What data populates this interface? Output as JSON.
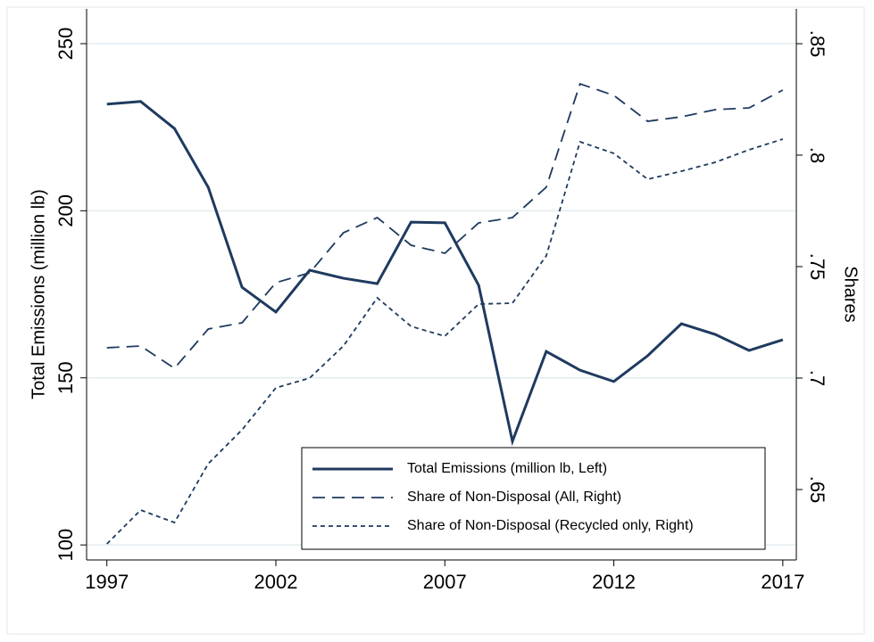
{
  "chart_data": {
    "type": "line",
    "y_title": "Total Emissions (million lb)",
    "y2_title": "Shares",
    "x": [
      1997,
      1998,
      1999,
      2000,
      2001,
      2002,
      2003,
      2004,
      2005,
      2006,
      2007,
      2008,
      2009,
      2010,
      2011,
      2012,
      2013,
      2014,
      2015,
      2016,
      2017
    ],
    "xlim": [
      1996.4,
      2017.4
    ],
    "xticks": [
      1997,
      2002,
      2007,
      2012,
      2017
    ],
    "ylim": [
      95.5,
      260.4
    ],
    "yticks": [
      100,
      150,
      200,
      250
    ],
    "y2lim": [
      0.6184,
      0.8656
    ],
    "y2ticks": [
      {
        "value": 0.65,
        "label": ".65"
      },
      {
        "value": 0.7,
        "label": ".7"
      },
      {
        "value": 0.75,
        "label": ".75"
      },
      {
        "value": 0.8,
        "label": ".8"
      },
      {
        "value": 0.85,
        "label": ".85"
      }
    ],
    "grid": true,
    "legend_position": "bottom-right",
    "series": [
      {
        "name": "Total Emissions (million lb, Left)",
        "color": "#1f3a5f",
        "line_style": "solid",
        "values": [
          231.9,
          232.7,
          224.6,
          207.0,
          177.1,
          169.7,
          182.2,
          179.8,
          178.2,
          196.6,
          196.4,
          177.7,
          131.0,
          157.9,
          152.3,
          148.9,
          156.6,
          166.2,
          163.0,
          158.2,
          161.4
        ]
      },
      {
        "name": "Share of Non-Disposal (All, Right)",
        "color": "#1f3a5f",
        "line_style": "dashed",
        "axis": "y2",
        "values": [
          0.7136,
          0.7144,
          0.7044,
          0.722,
          0.7248,
          0.7428,
          0.7472,
          0.7652,
          0.772,
          0.7596,
          0.756,
          0.7696,
          0.772,
          0.7856,
          0.832,
          0.8268,
          0.8152,
          0.8172,
          0.8204,
          0.8212,
          0.8292
        ]
      },
      {
        "name": "Share of Non-Disposal (Recycled only, Right)",
        "color": "#1f3a5f",
        "line_style": "dotted",
        "axis": "y2",
        "values": [
          0.6256,
          0.6408,
          0.6352,
          0.6616,
          0.6768,
          0.6956,
          0.7,
          0.7144,
          0.736,
          0.7232,
          0.7188,
          0.7332,
          0.7336,
          0.7548,
          0.806,
          0.8008,
          0.7892,
          0.7928,
          0.7968,
          0.8024,
          0.8072
        ]
      }
    ]
  }
}
